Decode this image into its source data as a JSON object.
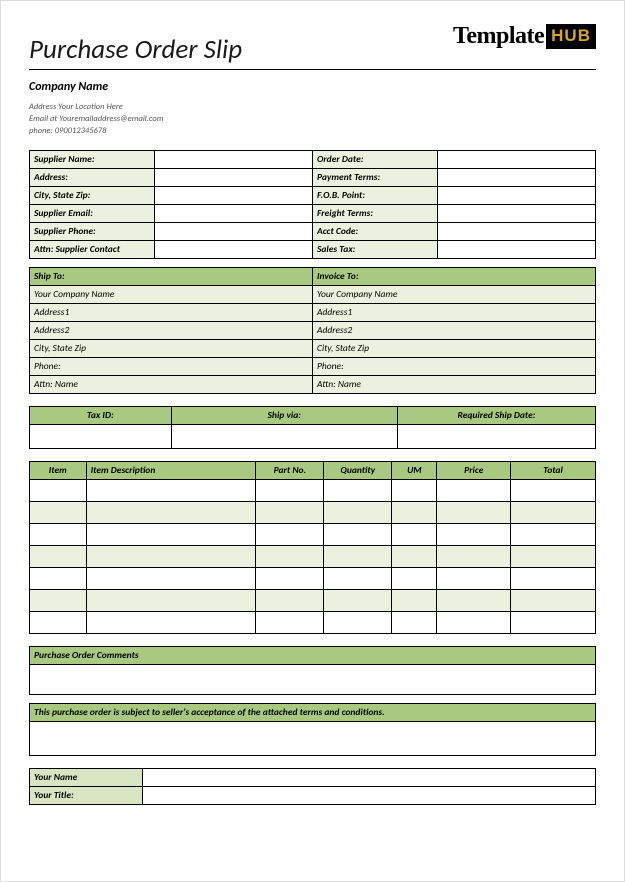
{
  "title": "Purchase Order Slip",
  "logo": {
    "main": "Template",
    "hub": "HUB"
  },
  "company": {
    "name": "Company Name",
    "address": "Address Your Location Here",
    "email": "Email at Youremailaddress@email.com",
    "phone": "phone: 090012345678"
  },
  "colors": {
    "light_green": "#eaf1de",
    "mid_green": "#d8e4c2",
    "dark_green": "#a8c97f",
    "border": "#000000"
  },
  "supplier_labels": {
    "name": "Supplier Name:",
    "order_date": "Order Date:",
    "address": "Address:",
    "payment_terms": "Payment Terms:",
    "city": "City, State Zip:",
    "fob": "F.O.B. Point:",
    "email": "Supplier Email:",
    "freight": "Freight Terms:",
    "phone": "Supplier Phone:",
    "acct": "Acct Code:",
    "attn": "Attn: Supplier Contact",
    "sales_tax": "Sales Tax:"
  },
  "ship_headers": {
    "ship_to": "Ship To:",
    "invoice_to": "Invoice To:"
  },
  "ship_rows": {
    "company": "Your Company Name",
    "addr1": "Address1",
    "addr2": "Address2",
    "city": "City, State Zip",
    "phone": "Phone:",
    "attn": "Attn: Name"
  },
  "invoice_rows": {
    "company": "Your Company Name",
    "addr1": "Address1",
    "addr2": "Address2",
    "city": "City, State Zip",
    "phone": "Phone:",
    "attn": "Attn: Name"
  },
  "tax_headers": {
    "tax_id": "Tax ID:",
    "ship_via": "Ship via:",
    "req_date": "Required Ship Date:"
  },
  "items_headers": {
    "item": "Item",
    "desc": "Item Description",
    "part": "Part No.",
    "qty": "Quantity",
    "um": "UM",
    "price": "Price",
    "total": "Total"
  },
  "items_col_widths": [
    10,
    30,
    12,
    12,
    8,
    13,
    15
  ],
  "items_row_count": 7,
  "items_shaded_rows": [
    1,
    3,
    5
  ],
  "comments_header": "Purchase Order Comments",
  "terms_text": "This purchase order is subject to seller's acceptance of the attached terms and conditions.",
  "sign": {
    "name": "Your Name",
    "title": "Your Title:"
  }
}
